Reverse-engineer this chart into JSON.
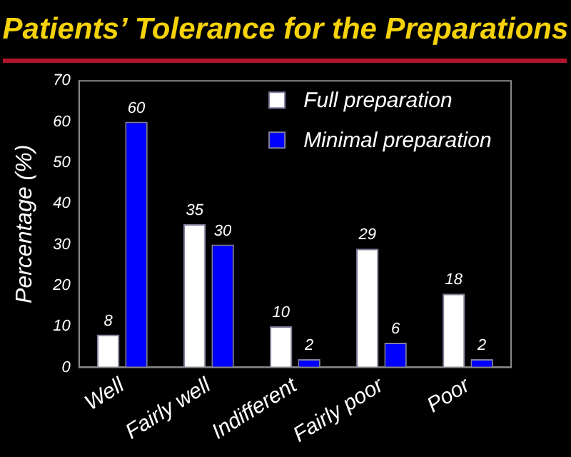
{
  "chart_data": {
    "type": "bar",
    "title": "Patients’ Tolerance for the Preparations",
    "ylabel": "Percentage (%)",
    "categories": [
      "Well",
      "Fairly well",
      "Indifferent",
      "Fairly poor",
      "Poor"
    ],
    "series": [
      {
        "name": "Full preparation",
        "color": "#ffffff",
        "values": [
          8,
          35,
          10,
          29,
          18
        ]
      },
      {
        "name": "Minimal preparation",
        "color": "#0000ff",
        "values": [
          60,
          30,
          2,
          6,
          2
        ]
      }
    ],
    "ylim": [
      0,
      70
    ],
    "yticks": [
      0,
      10,
      20,
      30,
      40,
      50,
      60,
      70
    ],
    "grid": false,
    "legend": "top right",
    "data_labels": true
  }
}
